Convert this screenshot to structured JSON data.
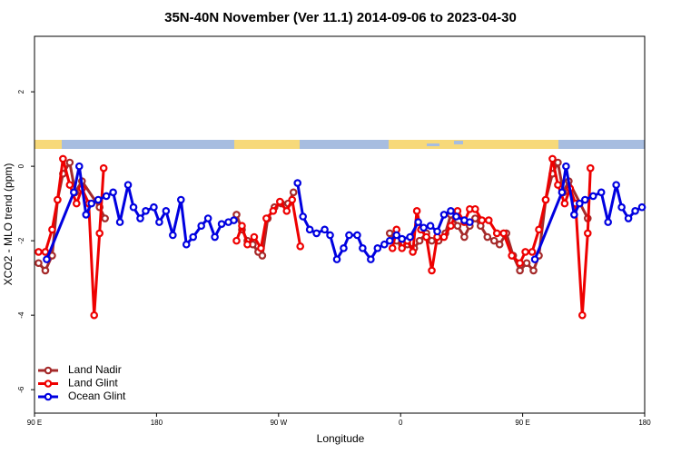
{
  "chart_data": {
    "type": "line",
    "title": "35N-40N November (Ver 11.1)   2014-09-06 to 2023-04-30",
    "xlabel": "Longitude",
    "ylabel": "XCO2 - MLO trend (ppm)",
    "xlim": [
      90,
      540
    ],
    "ylim": [
      -6.63,
      3.49
    ],
    "xticks": [
      {
        "value": 90,
        "label": "90 E"
      },
      180,
      {
        "value": 270,
        "label": "90 W"
      },
      {
        "value": 360,
        "label": "0"
      },
      {
        "value": 450,
        "label": "90 E"
      },
      {
        "value": 540,
        "label": "180"
      }
    ],
    "yticks": [
      -6,
      -4,
      -2,
      0,
      2
    ],
    "legend": "bottom-left",
    "series": [
      {
        "name": "Land Nadir",
        "color": "#a52a2a",
        "x": [
          93,
          98,
          103,
          107,
          111,
          116,
          120,
          125,
          138,
          142,
          null,
          239,
          243,
          247,
          251,
          255,
          258,
          262,
          267,
          272,
          277,
          281,
          null,
          352,
          357,
          361,
          365,
          370,
          374,
          379,
          383,
          388,
          393,
          397,
          402,
          407,
          411,
          415,
          419,
          424,
          429,
          433,
          438,
          443,
          448,
          453,
          458,
          462,
          467,
          472,
          476,
          480,
          484,
          498
        ],
        "values": [
          -2.6,
          -2.8,
          -2.4,
          -0.9,
          -0.2,
          0.1,
          -0.7,
          -0.4,
          -1.1,
          -1.4,
          null,
          -1.3,
          -1.7,
          -2.0,
          -2.1,
          -2.3,
          -2.4,
          -1.4,
          -1.1,
          -1.0,
          -1.0,
          -0.7,
          null,
          -1.8,
          -2.0,
          -2.1,
          -2.1,
          -2.2,
          -2.0,
          -1.8,
          -2.0,
          -2.0,
          -1.8,
          -1.3,
          -1.6,
          -1.9,
          -1.6,
          -1.4,
          -1.6,
          -1.9,
          -2.0,
          -2.1,
          -1.8,
          -2.4,
          -2.8,
          -2.6,
          -2.8,
          -2.4,
          -0.9,
          -0.2,
          0.1,
          -0.7,
          -0.4,
          -1.4
        ]
      },
      {
        "name": "Land Glint",
        "color": "#ee0000",
        "x": [
          93,
          98,
          103,
          107,
          111,
          116,
          121,
          125,
          130,
          134,
          138,
          141,
          null,
          239,
          243,
          247,
          252,
          257,
          261,
          266,
          271,
          276,
          280,
          286,
          null,
          354,
          357,
          361,
          365,
          369,
          372,
          375,
          379,
          383,
          387,
          392,
          397,
          402,
          407,
          411,
          415,
          420,
          425,
          431,
          436,
          442,
          448,
          452,
          457,
          462,
          467,
          472,
          476,
          481,
          485,
          489,
          494,
          498,
          500
        ],
        "values": [
          -2.3,
          -2.3,
          -1.7,
          -0.9,
          0.2,
          -0.5,
          -1.0,
          -0.6,
          -1.0,
          -4.0,
          -1.8,
          -0.05,
          null,
          -2.0,
          -1.6,
          -2.1,
          -1.9,
          -2.2,
          -1.4,
          -1.2,
          -0.95,
          -1.2,
          -0.9,
          -2.15,
          null,
          -2.2,
          -1.7,
          -2.2,
          -2.0,
          -2.3,
          -1.2,
          -1.7,
          -1.9,
          -2.8,
          -1.9,
          -1.9,
          -1.6,
          -1.2,
          -1.5,
          -1.15,
          -1.15,
          -1.45,
          -1.45,
          -1.8,
          -1.8,
          -2.4,
          -2.6,
          -2.3,
          -2.3,
          -1.7,
          -0.9,
          0.2,
          -0.5,
          -1.0,
          -0.6,
          -1.0,
          -4.0,
          -1.8,
          -0.05
        ]
      },
      {
        "name": "Ocean Glint",
        "color": "#0000e0",
        "x": [
          99,
          119,
          123,
          128,
          132,
          137,
          143,
          148,
          153,
          159,
          163,
          168,
          172,
          178,
          182,
          187,
          192,
          198,
          202,
          207,
          213,
          218,
          223,
          228,
          233,
          237,
          null,
          284,
          288,
          293,
          298,
          304,
          308,
          313,
          318,
          322,
          328,
          332,
          338,
          343,
          348,
          352,
          357,
          361,
          367,
          373,
          377,
          382,
          387,
          392,
          397,
          401,
          407,
          411,
          null,
          459,
          479,
          482,
          488,
          492,
          496,
          502,
          508,
          513,
          519,
          523,
          528,
          533,
          538
        ],
        "values": [
          -2.5,
          -0.7,
          0.0,
          -1.3,
          -1.0,
          -0.9,
          -0.8,
          -0.7,
          -1.5,
          -0.5,
          -1.1,
          -1.4,
          -1.2,
          -1.1,
          -1.5,
          -1.2,
          -1.85,
          -0.9,
          -2.1,
          -1.9,
          -1.6,
          -1.4,
          -1.9,
          -1.55,
          -1.5,
          -1.45,
          null,
          -0.45,
          -1.35,
          -1.7,
          -1.8,
          -1.7,
          -1.85,
          -2.5,
          -2.2,
          -1.85,
          -1.85,
          -2.2,
          -2.5,
          -2.2,
          -2.1,
          -2.0,
          -1.85,
          -1.95,
          -1.9,
          -1.5,
          -1.65,
          -1.6,
          -1.75,
          -1.3,
          -1.2,
          -1.35,
          -1.45,
          -1.5,
          null,
          -2.5,
          -0.7,
          0.0,
          -1.3,
          -1.0,
          -0.9,
          -0.8,
          -0.7,
          -1.5,
          -0.5,
          -1.1,
          -1.4,
          -1.2,
          -1.1
        ]
      }
    ]
  }
}
